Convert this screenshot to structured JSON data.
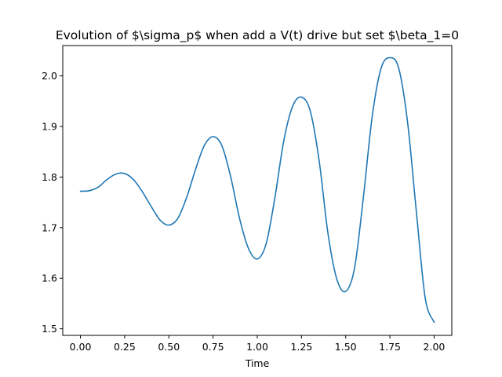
{
  "chart_data": {
    "type": "line",
    "title": "Evolution of $\\sigma_p$ when add a V(t) drive but set $\\beta_1=0",
    "xlabel": "Time",
    "ylabel": "",
    "xlim": [
      -0.1,
      2.1
    ],
    "ylim": [
      1.487,
      2.06
    ],
    "xticks": [
      0.0,
      0.25,
      0.5,
      0.75,
      1.0,
      1.25,
      1.5,
      1.75,
      2.0
    ],
    "xtick_labels": [
      "0.00",
      "0.25",
      "0.50",
      "0.75",
      "1.00",
      "1.25",
      "1.50",
      "1.75",
      "2.00"
    ],
    "yticks": [
      1.5,
      1.6,
      1.7,
      1.8,
      1.9,
      2.0
    ],
    "ytick_labels": [
      "1.5",
      "1.6",
      "1.7",
      "1.8",
      "1.9",
      "2.0"
    ],
    "grid": false,
    "legend": "none",
    "series": [
      {
        "color": "#1f77b4",
        "x": [
          0.0,
          0.05,
          0.1,
          0.15,
          0.2,
          0.25,
          0.3,
          0.35,
          0.4,
          0.45,
          0.5,
          0.55,
          0.6,
          0.65,
          0.7,
          0.75,
          0.8,
          0.85,
          0.9,
          0.95,
          1.0,
          1.05,
          1.1,
          1.15,
          1.2,
          1.25,
          1.3,
          1.35,
          1.4,
          1.45,
          1.5,
          1.55,
          1.6,
          1.65,
          1.7,
          1.75,
          1.8,
          1.85,
          1.9,
          1.95,
          2.0
        ],
        "y": [
          1.772,
          1.773,
          1.78,
          1.795,
          1.806,
          1.807,
          1.795,
          1.771,
          1.742,
          1.715,
          1.705,
          1.718,
          1.759,
          1.814,
          1.862,
          1.88,
          1.862,
          1.8,
          1.718,
          1.659,
          1.638,
          1.668,
          1.76,
          1.872,
          1.94,
          1.958,
          1.93,
          1.832,
          1.688,
          1.598,
          1.574,
          1.62,
          1.76,
          1.92,
          2.015,
          2.036,
          2.015,
          1.908,
          1.73,
          1.56,
          1.513
        ]
      }
    ]
  }
}
